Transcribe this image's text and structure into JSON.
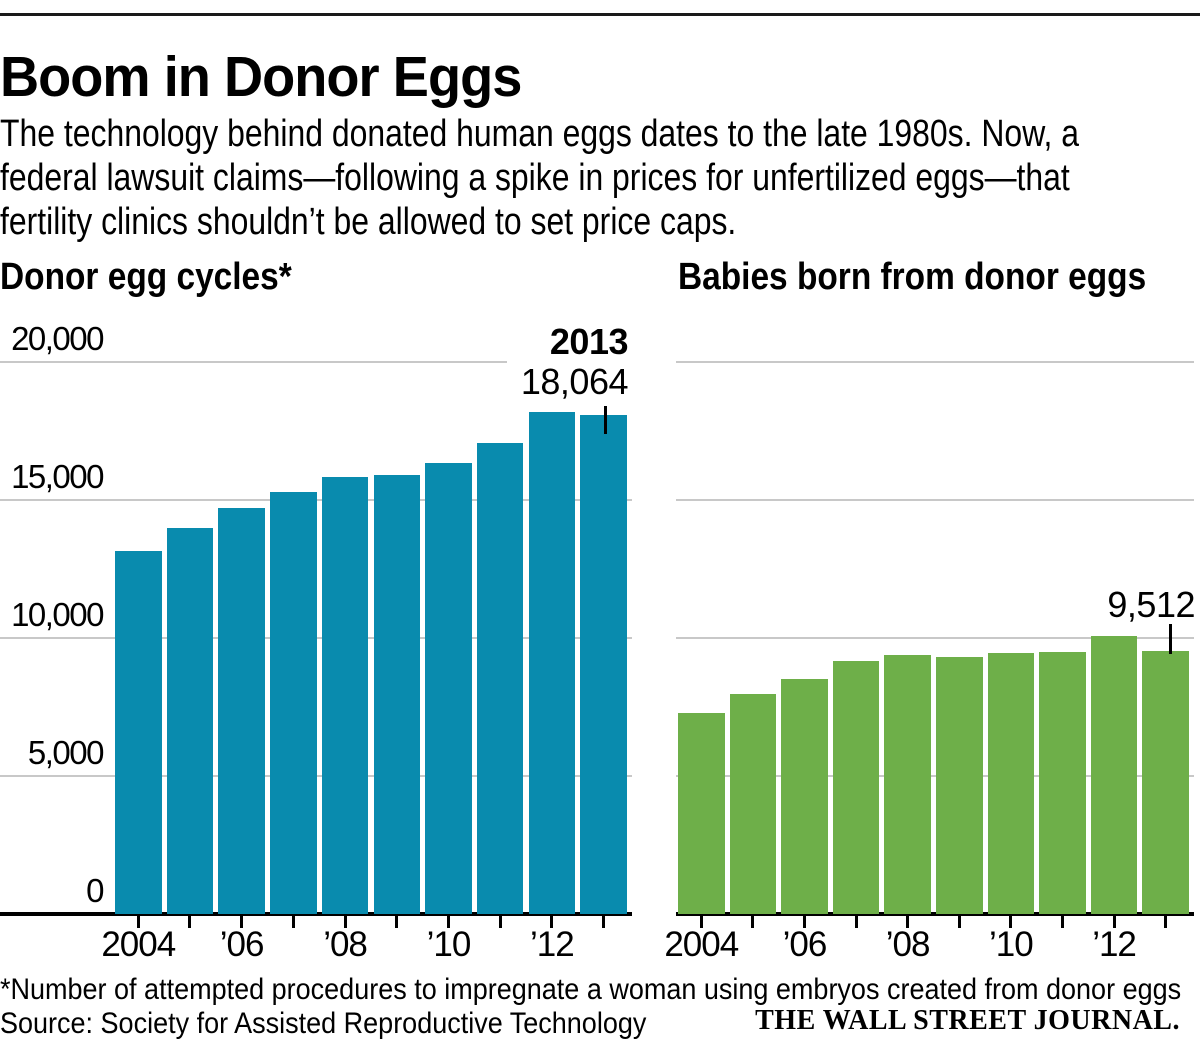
{
  "header": {
    "title": "Boom in Donor Eggs",
    "subtitle_lines": [
      "The technology behind donated human eggs dates to the late 1980s. Now, a",
      "federal lawsuit claims—following a spike in prices for unfertilized eggs—that",
      "fertility clinics shouldn’t be allowed to set price caps."
    ]
  },
  "colors": {
    "left_bar": "#098bae",
    "right_bar": "#6eaf49",
    "gridline": "#c8c8c8",
    "axis": "#000000",
    "top_rule": "#1a1a1a"
  },
  "chart_data": [
    {
      "type": "bar",
      "title": "Donor egg cycles*",
      "categories": [
        "2004",
        "2005",
        "2006",
        "2007",
        "2008",
        "2009",
        "2010",
        "2011",
        "2012",
        "2013"
      ],
      "values": [
        13150,
        14000,
        14700,
        15300,
        15850,
        15900,
        16350,
        17050,
        18200,
        18064
      ],
      "bar_color": "#098bae",
      "ylim": [
        0,
        20000
      ],
      "ytick_labels": [
        "0",
        "5,000",
        "10,000",
        "15,000",
        "20,000"
      ],
      "xtick_labels": [
        "2004",
        "’06",
        "’08",
        "’10",
        "’12"
      ],
      "grid": "on",
      "annotation": {
        "line1": "2013",
        "line2": "18,064"
      }
    },
    {
      "type": "bar",
      "title": "Babies born from donor eggs",
      "categories": [
        "2004",
        "2005",
        "2006",
        "2007",
        "2008",
        "2009",
        "2010",
        "2011",
        "2012",
        "2013"
      ],
      "values": [
        7290,
        7980,
        8530,
        9150,
        9400,
        9310,
        9470,
        9500,
        10090,
        9512
      ],
      "bar_color": "#6eaf49",
      "ylim": [
        0,
        20000
      ],
      "ytick_labels": [],
      "xtick_labels": [
        "2004",
        "’06",
        "’08",
        "’10",
        "’12"
      ],
      "grid": "on",
      "annotation": {
        "line2": "9,512"
      }
    }
  ],
  "footer": {
    "footnote": "*Number of attempted procedures to impregnate a woman using embryos created from donor eggs",
    "source": "Source: Society for Assisted Reproductive Technology",
    "brand": "THE WALL STREET JOURNAL."
  }
}
